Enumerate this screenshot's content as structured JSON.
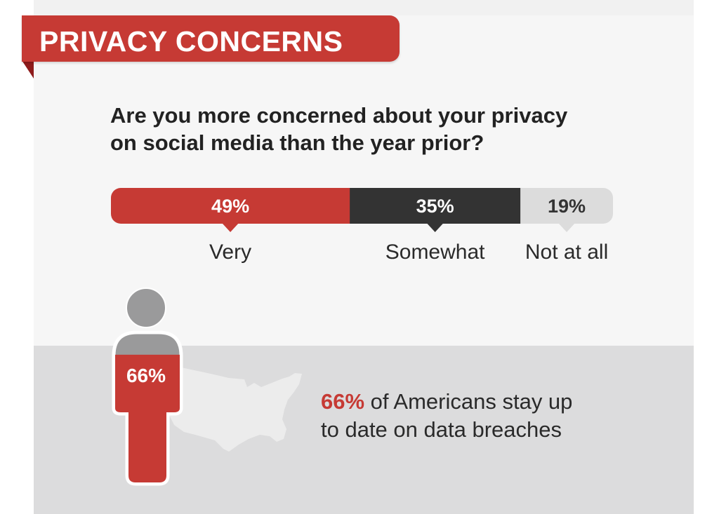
{
  "header": {
    "title": "PRIVACY CONCERNS"
  },
  "question": {
    "line1": "Are you more concerned about your privacy",
    "line2": "on social media than the year prior?"
  },
  "colors": {
    "very": "#c63a34",
    "somewhat": "#333333",
    "not_at_all": "#dcdcdc",
    "accent": "#c63a34",
    "figure_head": "#9a9a9b"
  },
  "chart_data": {
    "type": "bar",
    "stacked": true,
    "orientation": "horizontal",
    "categories": [
      "Very",
      "Somewhat",
      "Not at all"
    ],
    "values": [
      49,
      35,
      19
    ],
    "data_labels": [
      "49%",
      "35%",
      "19%"
    ],
    "title": "Are you more concerned about your privacy on social media than the year prior?"
  },
  "stat": {
    "figure_label": "66%",
    "figure_fill_fraction": 0.66,
    "highlight": "66%",
    "line1_rest": " of Americans stay up",
    "line2": "to date on data breaches",
    "map_icon": "usa-map-icon",
    "figure_icon": "person-icon"
  }
}
